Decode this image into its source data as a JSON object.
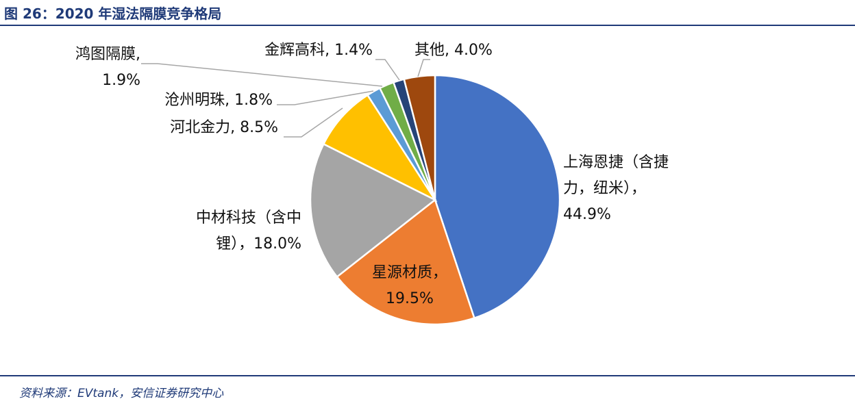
{
  "header": {
    "figure_title": "图 26：2020 年湿法隔膜竞争格局"
  },
  "footer": {
    "source": "资料来源：EVtank，安信证券研究中心"
  },
  "chart_data": {
    "type": "pie",
    "title": "",
    "slices": [
      {
        "name": "上海恩捷（含捷力，纽米）",
        "value": 44.9,
        "color": "#4472c4",
        "label_lines": [
          "上海恩捷（含捷",
          "力，纽米），",
          "44.9%"
        ]
      },
      {
        "name": "星源材质",
        "value": 19.5,
        "color": "#ed7d31",
        "label_lines": [
          "星源材质，",
          "19.5%"
        ]
      },
      {
        "name": "中材科技（含中锂）",
        "value": 18.0,
        "color": "#a5a5a5",
        "label_lines": [
          "中材科技（含中",
          "锂），18.0%"
        ]
      },
      {
        "name": "河北金力",
        "value": 8.5,
        "color": "#ffc000",
        "label_lines": [
          "河北金力, 8.5%"
        ]
      },
      {
        "name": "沧州明珠",
        "value": 1.8,
        "color": "#5b9bd5",
        "label_lines": [
          "沧州明珠, 1.8%"
        ]
      },
      {
        "name": "鸿图隔膜",
        "value": 1.9,
        "color": "#70ad47",
        "label_lines": [
          "鸿图隔膜,",
          "1.9%"
        ]
      },
      {
        "name": "金辉高科",
        "value": 1.4,
        "color": "#264478",
        "label_lines": [
          "金辉高科, 1.4%"
        ]
      },
      {
        "name": "其他",
        "value": 4.0,
        "color": "#9e480e",
        "label_lines": [
          "其他, 4.0%"
        ]
      }
    ]
  }
}
